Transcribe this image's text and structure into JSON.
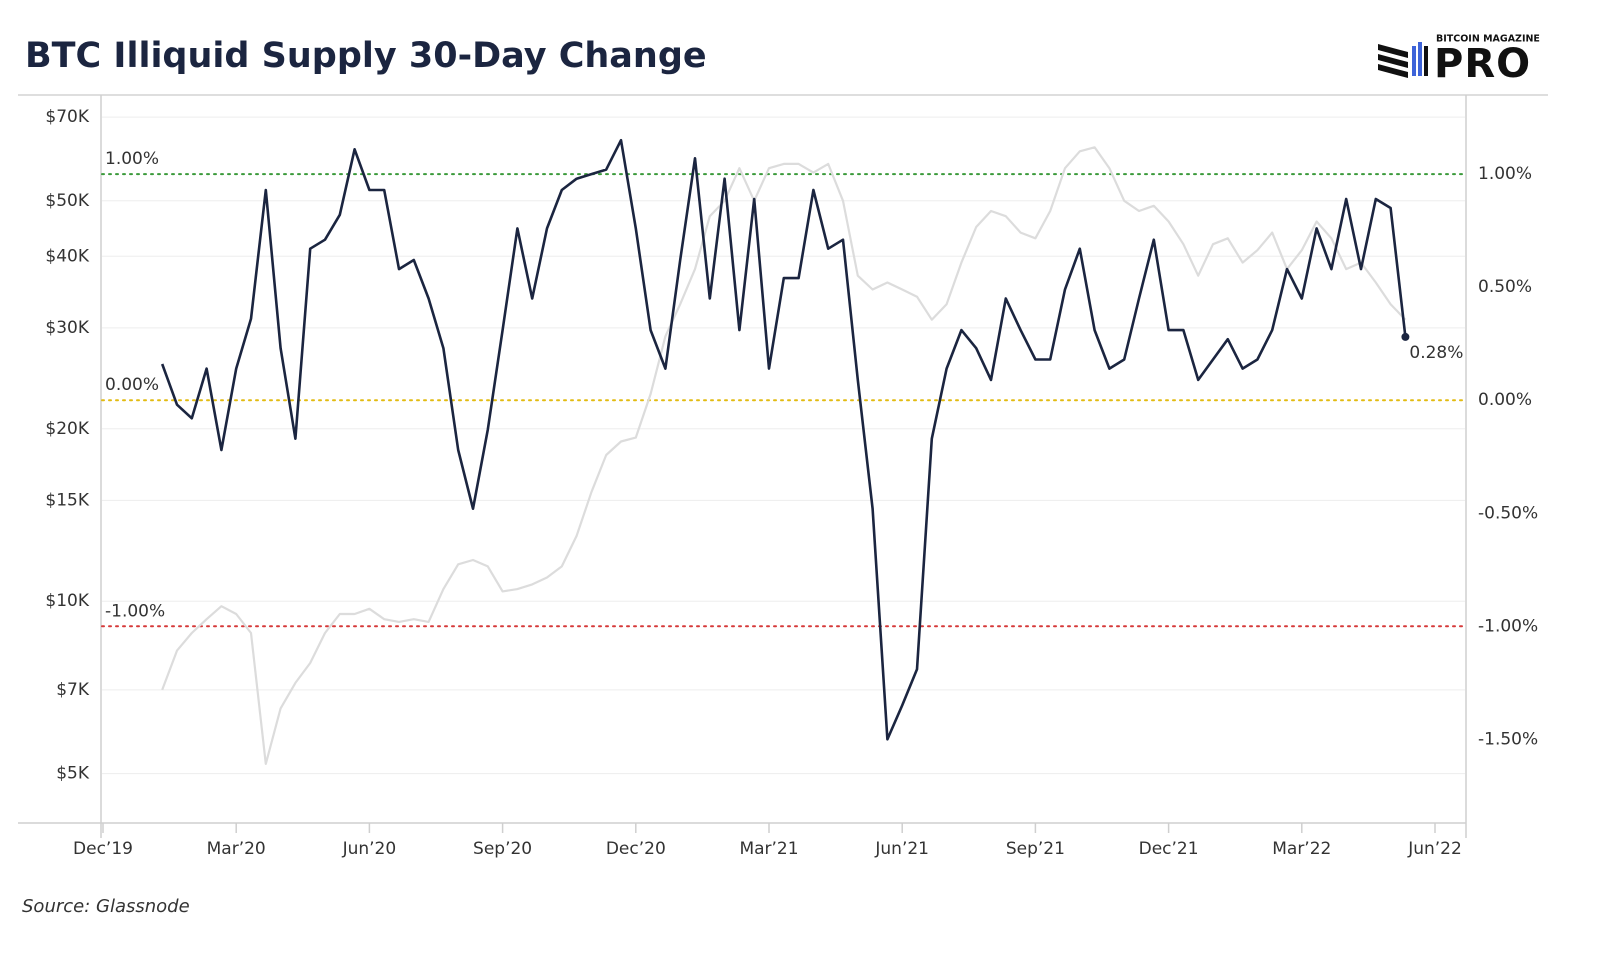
{
  "chart_data": {
    "type": "line",
    "title": "BTC Illiquid Supply 30-Day Change",
    "source": "Source: Glassnode",
    "logo": {
      "small": "BITCOIN MAGAZINE",
      "big": "PRO"
    },
    "categories": [
      "Dec’19",
      null,
      null,
      null,
      null,
      null,
      null,
      null,
      null,
      "Mar’20",
      null,
      null,
      null,
      null,
      null,
      null,
      null,
      null,
      "Jun’20",
      null,
      null,
      null,
      null,
      null,
      null,
      null,
      null,
      "Sep’20",
      null,
      null,
      null,
      null,
      null,
      null,
      null,
      null,
      "Dec’20",
      null,
      null,
      null,
      null,
      null,
      null,
      null,
      null,
      "Mar’21",
      null,
      null,
      null,
      null,
      null,
      null,
      null,
      null,
      "Jun’21",
      null,
      null,
      null,
      null,
      null,
      null,
      null,
      null,
      "Sep’21",
      null,
      null,
      null,
      null,
      null,
      null,
      null,
      null,
      "Dec’21",
      null,
      null,
      null,
      null,
      null,
      null,
      null,
      null,
      "Mar’22",
      null,
      null,
      null,
      null,
      null,
      null,
      null,
      null,
      "Jun’22"
    ],
    "series": [
      {
        "color": "#dcdcdc",
        "axis": "y",
        "values": [
          null,
          null,
          null,
          null,
          7000,
          8200,
          8800,
          9300,
          9800,
          9500,
          8800,
          5200,
          6500,
          7200,
          7800,
          8800,
          9500,
          9500,
          9700,
          9300,
          9200,
          9300,
          9200,
          10500,
          11600,
          11800,
          11500,
          10400,
          10500,
          10700,
          11000,
          11500,
          13000,
          15500,
          18000,
          19000,
          19300,
          23000,
          29000,
          33000,
          38000,
          47000,
          50000,
          57000,
          50000,
          57000,
          58000,
          58000,
          56000,
          58000,
          50000,
          37000,
          35000,
          36000,
          35000,
          34000,
          31000,
          33000,
          39000,
          45000,
          48000,
          47000,
          44000,
          43000,
          48000,
          57000,
          61000,
          62000,
          57000,
          50000,
          48000,
          49000,
          46000,
          42000,
          37000,
          42000,
          43000,
          39000,
          41000,
          44000,
          38000,
          41000,
          46000,
          43000,
          38000,
          39000,
          36000,
          33000,
          31000,
          null,
          null
        ]
      },
      {
        "color": "#1b2540",
        "axis": "y2",
        "values": [
          null,
          null,
          null,
          null,
          0.16,
          -0.02,
          -0.08,
          0.14,
          -0.22,
          0.14,
          0.36,
          0.93,
          0.23,
          -0.17,
          0.67,
          0.71,
          0.82,
          1.11,
          0.93,
          0.93,
          0.58,
          0.62,
          0.45,
          0.23,
          -0.22,
          -0.48,
          -0.13,
          0.31,
          0.76,
          0.45,
          0.76,
          0.93,
          0.98,
          1.0,
          1.02,
          1.15,
          0.76,
          0.31,
          0.14,
          0.62,
          1.07,
          0.45,
          0.98,
          0.31,
          0.89,
          0.14,
          0.54,
          0.54,
          0.93,
          0.67,
          0.71,
          0.09,
          -0.48,
          -1.5,
          -1.35,
          -1.19,
          -0.17,
          0.14,
          0.31,
          0.23,
          0.09,
          0.45,
          0.31,
          0.18,
          0.18,
          0.49,
          0.67,
          0.31,
          0.14,
          0.18,
          0.45,
          0.71,
          0.31,
          0.31,
          0.09,
          0.18,
          0.27,
          0.14,
          0.18,
          0.31,
          0.58,
          0.45,
          0.76,
          0.58,
          0.89,
          0.58,
          0.89,
          0.85,
          0.28,
          null,
          null
        ],
        "value_labels": [
          null,
          null,
          null,
          null,
          null,
          null,
          null,
          null,
          null,
          null,
          null,
          null,
          null,
          null,
          null,
          null,
          null,
          null,
          null,
          null,
          null,
          null,
          null,
          null,
          null,
          null,
          null,
          null,
          null,
          null,
          null,
          null,
          null,
          null,
          null,
          null,
          null,
          null,
          null,
          null,
          null,
          null,
          null,
          null,
          null,
          null,
          null,
          null,
          null,
          null,
          null,
          null,
          null,
          null,
          null,
          null,
          null,
          null,
          null,
          null,
          null,
          null,
          null,
          null,
          null,
          null,
          null,
          null,
          null,
          null,
          null,
          null,
          null,
          null,
          null,
          null,
          null,
          null,
          null,
          null,
          null,
          null,
          null,
          null,
          null,
          null,
          null,
          null,
          "0.28%",
          null,
          null
        ]
      }
    ],
    "ylim": [
      4100,
      76500
    ],
    "log_scale": true,
    "yticks": [
      {
        "value": 5000,
        "label": "$5K"
      },
      {
        "value": 7000,
        "label": "$7K"
      },
      {
        "value": 10000,
        "label": "$10K"
      },
      {
        "value": 15000,
        "label": "$15K"
      },
      {
        "value": 20000,
        "label": "$20K"
      },
      {
        "value": 30000,
        "label": "$30K"
      },
      {
        "value": 40000,
        "label": "$40K"
      },
      {
        "value": 50000,
        "label": "$50K"
      },
      {
        "value": 70000,
        "label": "$70K"
      }
    ],
    "y2lim": [
      -1.87,
      1.35
    ],
    "y2ticks": [
      {
        "value": -1.5,
        "label": "-1.50%"
      },
      {
        "value": -1,
        "label": "-1.00%"
      },
      {
        "value": -0.5,
        "label": "-0.50%"
      },
      {
        "value": 0,
        "label": "0.00%"
      },
      {
        "value": 0.5,
        "label": "0.50%"
      },
      {
        "value": 1,
        "label": "1.00%"
      }
    ],
    "reference_lines": [
      {
        "value": 1,
        "label": "1.00%",
        "color": "#3b9a3b",
        "axis": "y2"
      },
      {
        "value": 0,
        "label": "0.00%",
        "color": "#e2bb12",
        "axis": "y2"
      },
      {
        "value": -1,
        "label": "-1.00%",
        "color": "#d63a3a",
        "axis": "y2"
      }
    ],
    "grid": true
  }
}
